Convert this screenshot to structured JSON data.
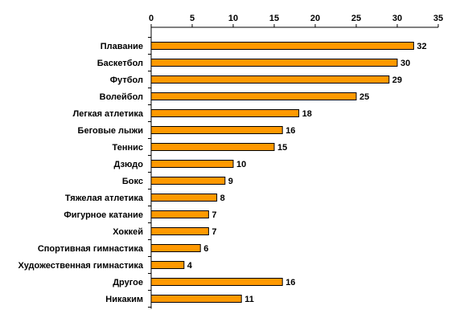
{
  "chart_data": {
    "type": "bar",
    "orientation": "horizontal",
    "categories": [
      "Плавание",
      "Баскетбол",
      "Футбол",
      "Волейбол",
      "Легкая атлетика",
      "Беговые лыжи",
      "Теннис",
      "Дзюдо",
      "Бокс",
      "Тяжелая атлетика",
      "Фигурное катание",
      "Хоккей",
      "Спортивная гимнастика",
      "Художественная гимнастика",
      "Другое",
      "Никаким"
    ],
    "values": [
      32,
      30,
      29,
      25,
      18,
      16,
      15,
      10,
      9,
      8,
      7,
      7,
      6,
      4,
      16,
      11
    ],
    "xlim": [
      0,
      35
    ],
    "xticks": [
      0,
      5,
      10,
      15,
      20,
      25,
      30,
      35
    ],
    "axis_position": "top",
    "grid": false,
    "legend": "none",
    "data_labels": true,
    "bar_color": "#FF9900",
    "bar_edge_color": "#000000"
  }
}
